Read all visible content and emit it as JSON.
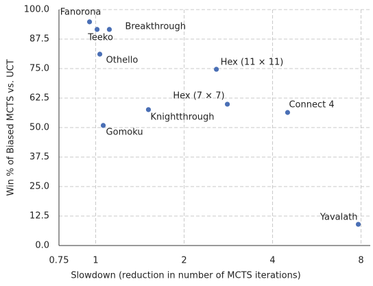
{
  "chart_data": {
    "type": "scatter",
    "x_label": "Slowdown (reduction in number of MCTS iterations)",
    "y_label": "Win % of Biased MCTS vs. UCT",
    "xscale": "log",
    "grid": true,
    "color": "#4a6fb5",
    "xlim": [
      0.75,
      8.6
    ],
    "ylim": [
      0,
      100
    ],
    "xticks": [
      0.75,
      1,
      2,
      4,
      8
    ],
    "yticks": [
      {
        "value": 0,
        "label": "0.0"
      },
      12.5,
      {
        "value": 25,
        "label": "25.0"
      },
      37.5,
      {
        "value": 50,
        "label": "50.0"
      },
      62.5,
      {
        "value": 75,
        "label": "75.0"
      },
      87.5,
      {
        "value": 100,
        "label": "100.0"
      }
    ],
    "labels": [
      "Fanorona",
      "Teeko",
      "Breakthrough",
      "Othello",
      "Hex (11 × 11)",
      "Hex (7 × 7)",
      "Connect 4",
      "Knightthrough",
      "Gomoku",
      "Yavalath"
    ],
    "x": [
      0.953,
      1.011,
      1.113,
      1.033,
      2.575,
      2.806,
      4.5,
      1.512,
      1.061,
      7.83
    ],
    "values": [
      94.8,
      91.6,
      91.6,
      81.1,
      74.7,
      59.9,
      56.4,
      57.6,
      50.9,
      9.0
    ]
  }
}
